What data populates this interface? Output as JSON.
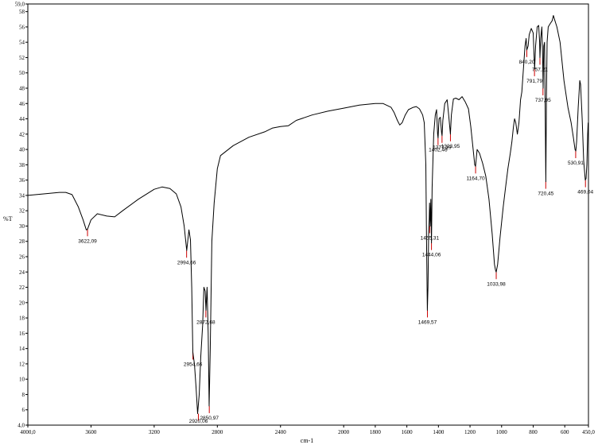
{
  "chart_data": {
    "type": "line",
    "title": "",
    "xlabel": "cm-1",
    "ylabel": "%T",
    "xlim": [
      4000.0,
      450.0
    ],
    "ylim": [
      4.0,
      59.0
    ],
    "x_ticks": [
      "4000,0",
      "3600",
      "3200",
      "2800",
      "2400",
      "2000",
      "1800",
      "1600",
      "1400",
      "1200",
      "1000",
      "800",
      "600",
      "450,0"
    ],
    "y_ticks": [
      "4,0",
      "6",
      "8",
      "10",
      "12",
      "14",
      "16",
      "18",
      "20",
      "22",
      "24",
      "26",
      "28",
      "30",
      "32",
      "34",
      "36",
      "38",
      "40",
      "42",
      "44",
      "46",
      "48",
      "50",
      "52",
      "54",
      "56",
      "58",
      "59,0"
    ],
    "grid": false,
    "series_color": "#000000",
    "marker_color": "#cc0000",
    "series": [
      {
        "values": [
          [
            4000,
            34.0
          ],
          [
            3900,
            34.2
          ],
          [
            3800,
            34.4
          ],
          [
            3760,
            34.4
          ],
          [
            3720,
            34.1
          ],
          [
            3680,
            32.5
          ],
          [
            3650,
            30.8
          ],
          [
            3630,
            29.5
          ],
          [
            3622,
            29.6
          ],
          [
            3600,
            30.8
          ],
          [
            3560,
            31.6
          ],
          [
            3500,
            31.3
          ],
          [
            3450,
            31.2
          ],
          [
            3400,
            32.0
          ],
          [
            3300,
            33.5
          ],
          [
            3200,
            34.8
          ],
          [
            3150,
            35.1
          ],
          [
            3100,
            34.9
          ],
          [
            3060,
            34.2
          ],
          [
            3030,
            32.5
          ],
          [
            3010,
            30.0
          ],
          [
            2994,
            26.8
          ],
          [
            2980,
            29.5
          ],
          [
            2970,
            28.2
          ],
          [
            2962,
            22.0
          ],
          [
            2955,
            13.5
          ],
          [
            2945,
            12.0
          ],
          [
            2935,
            9.0
          ],
          [
            2925,
            5.5
          ],
          [
            2915,
            8.0
          ],
          [
            2905,
            13.0
          ],
          [
            2893,
            17.0
          ],
          [
            2885,
            22.0
          ],
          [
            2877,
            21.5
          ],
          [
            2872,
            19.0
          ],
          [
            2865,
            22.0
          ],
          [
            2858,
            16.0
          ],
          [
            2852,
            6.5
          ],
          [
            2845,
            14.0
          ],
          [
            2835,
            28.0
          ],
          [
            2820,
            33.0
          ],
          [
            2800,
            37.5
          ],
          [
            2780,
            39.2
          ],
          [
            2700,
            40.5
          ],
          [
            2600,
            41.6
          ],
          [
            2500,
            42.3
          ],
          [
            2450,
            42.8
          ],
          [
            2400,
            43.0
          ],
          [
            2350,
            43.1
          ],
          [
            2300,
            43.8
          ],
          [
            2200,
            44.5
          ],
          [
            2100,
            45.0
          ],
          [
            2000,
            45.4
          ],
          [
            1900,
            45.8
          ],
          [
            1800,
            46.0
          ],
          [
            1750,
            46.0
          ],
          [
            1700,
            45.5
          ],
          [
            1680,
            44.8
          ],
          [
            1660,
            43.8
          ],
          [
            1645,
            43.2
          ],
          [
            1630,
            43.5
          ],
          [
            1610,
            44.5
          ],
          [
            1590,
            45.2
          ],
          [
            1560,
            45.5
          ],
          [
            1540,
            45.6
          ],
          [
            1520,
            45.3
          ],
          [
            1500,
            44.5
          ],
          [
            1490,
            43.5
          ],
          [
            1480,
            38.0
          ],
          [
            1475,
            28.0
          ],
          [
            1470,
            19.0
          ],
          [
            1466,
            22.0
          ],
          [
            1462,
            29.0
          ],
          [
            1458,
            31.0
          ],
          [
            1456,
            33.0
          ],
          [
            1452,
            30.0
          ],
          [
            1448,
            33.5
          ],
          [
            1444,
            27.8
          ],
          [
            1440,
            35.0
          ],
          [
            1430,
            42.0
          ],
          [
            1420,
            44.5
          ],
          [
            1412,
            45.2
          ],
          [
            1405,
            42.0
          ],
          [
            1402,
            41.5
          ],
          [
            1396,
            44.0
          ],
          [
            1388,
            44.2
          ],
          [
            1380,
            42.2
          ],
          [
            1377,
            41.8
          ],
          [
            1372,
            43.8
          ],
          [
            1360,
            46.0
          ],
          [
            1345,
            46.5
          ],
          [
            1335,
            44.5
          ],
          [
            1324,
            42.0
          ],
          [
            1318,
            44.5
          ],
          [
            1305,
            46.6
          ],
          [
            1290,
            46.7
          ],
          [
            1270,
            46.5
          ],
          [
            1250,
            46.9
          ],
          [
            1230,
            46.2
          ],
          [
            1210,
            45.3
          ],
          [
            1195,
            43.0
          ],
          [
            1180,
            40.0
          ],
          [
            1170,
            38.0
          ],
          [
            1165,
            37.8
          ],
          [
            1155,
            40.0
          ],
          [
            1140,
            39.5
          ],
          [
            1120,
            38.2
          ],
          [
            1100,
            36.5
          ],
          [
            1080,
            33.5
          ],
          [
            1060,
            29.0
          ],
          [
            1045,
            25.0
          ],
          [
            1038,
            24.2
          ],
          [
            1034,
            24.0
          ],
          [
            1025,
            25.0
          ],
          [
            1010,
            28.5
          ],
          [
            1000,
            30.5
          ],
          [
            990,
            32.5
          ],
          [
            975,
            35.0
          ],
          [
            960,
            37.5
          ],
          [
            945,
            39.5
          ],
          [
            935,
            41.0
          ],
          [
            925,
            43.0
          ],
          [
            918,
            44.0
          ],
          [
            910,
            43.5
          ],
          [
            900,
            42.0
          ],
          [
            890,
            43.5
          ],
          [
            880,
            46.5
          ],
          [
            872,
            47.5
          ],
          [
            862,
            50.5
          ],
          [
            852,
            53.5
          ],
          [
            845,
            54.5
          ],
          [
            840,
            53.0
          ],
          [
            832,
            53.5
          ],
          [
            825,
            55.0
          ],
          [
            812,
            55.8
          ],
          [
            800,
            55.2
          ],
          [
            795,
            52.5
          ],
          [
            791,
            50.5
          ],
          [
            785,
            53.5
          ],
          [
            775,
            56.0
          ],
          [
            765,
            56.2
          ],
          [
            759,
            54.0
          ],
          [
            757,
            52.0
          ],
          [
            752,
            54.5
          ],
          [
            745,
            56.0
          ],
          [
            740,
            52.0
          ],
          [
            737,
            48.0
          ],
          [
            733,
            53.5
          ],
          [
            728,
            54.0
          ],
          [
            724,
            45.0
          ],
          [
            720,
            35.8
          ],
          [
            716,
            47.0
          ],
          [
            712,
            54.0
          ],
          [
            705,
            56.0
          ],
          [
            690,
            56.5
          ],
          [
            680,
            56.8
          ],
          [
            672,
            57.5
          ],
          [
            665,
            57.0
          ],
          [
            650,
            56.0
          ],
          [
            630,
            54.0
          ],
          [
            605,
            49.0
          ],
          [
            580,
            45.5
          ],
          [
            560,
            43.5
          ],
          [
            545,
            41.5
          ],
          [
            535,
            40.0
          ],
          [
            530,
            39.8
          ],
          [
            525,
            41.0
          ],
          [
            515,
            45.5
          ],
          [
            505,
            49.0
          ],
          [
            500,
            48.5
          ],
          [
            490,
            44.0
          ],
          [
            480,
            38.5
          ],
          [
            470,
            36.0
          ],
          [
            465,
            36.2
          ],
          [
            460,
            38.0
          ],
          [
            455,
            42.0
          ],
          [
            452,
            43.5
          ]
        ]
      }
    ],
    "peaks": [
      {
        "label": "3622,09",
        "x": 3622.09,
        "y": 29.6
      },
      {
        "label": "2994,66",
        "x": 2994.66,
        "y": 26.8
      },
      {
        "label": "2954,66",
        "x": 2954.66,
        "y": 13.5
      },
      {
        "label": "2920,06",
        "x": 2920.06,
        "y": 5.5
      },
      {
        "label": "2872,68",
        "x": 2872.68,
        "y": 19.0
      },
      {
        "label": "2850,97",
        "x": 2850.97,
        "y": 6.5
      },
      {
        "label": "1469,57",
        "x": 1469.57,
        "y": 19.0
      },
      {
        "label": "1455,31",
        "x": 1455.31,
        "y": 30.0
      },
      {
        "label": "1444,06",
        "x": 1444.06,
        "y": 27.8
      },
      {
        "label": "1402,46",
        "x": 1402.46,
        "y": 41.5
      },
      {
        "label": "1377,19",
        "x": 1377.19,
        "y": 41.8
      },
      {
        "label": "1323,95",
        "x": 1323.95,
        "y": 42.0
      },
      {
        "label": "1164,70",
        "x": 1164.7,
        "y": 37.8
      },
      {
        "label": "1033,98",
        "x": 1033.98,
        "y": 24.0
      },
      {
        "label": "840,20",
        "x": 840.2,
        "y": 53.0
      },
      {
        "label": "791,79",
        "x": 791.79,
        "y": 50.5
      },
      {
        "label": "757,21",
        "x": 757.21,
        "y": 52.0
      },
      {
        "label": "737,95",
        "x": 737.95,
        "y": 48.0
      },
      {
        "label": "720,45",
        "x": 720.45,
        "y": 35.8
      },
      {
        "label": "530,91",
        "x": 530.91,
        "y": 39.8
      },
      {
        "label": "469,04",
        "x": 469.04,
        "y": 36.0
      }
    ]
  }
}
